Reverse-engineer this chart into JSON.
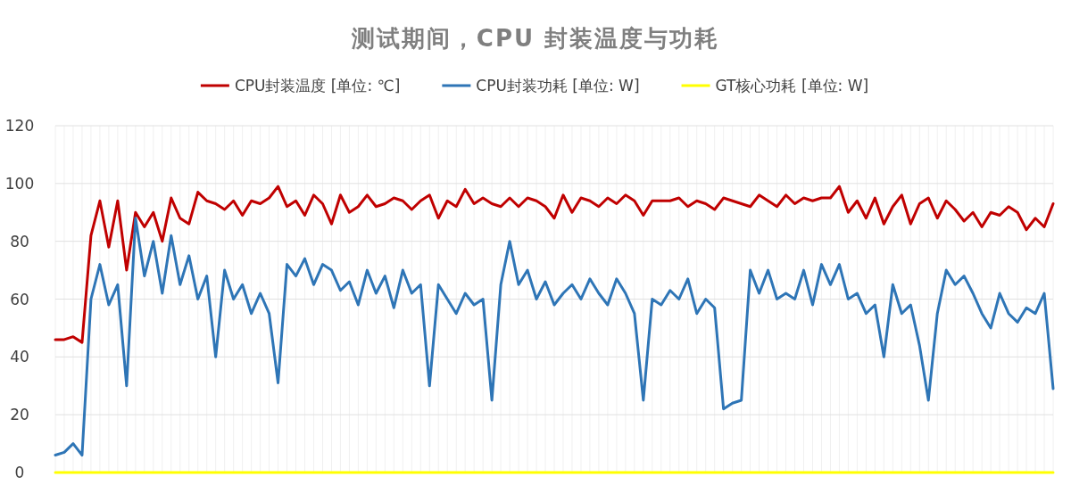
{
  "chart_data": {
    "type": "line",
    "title": "测试期间，CPU 封装温度与功耗",
    "categories": [
      null,
      null,
      null,
      null,
      null,
      null,
      null,
      null,
      null,
      null,
      null,
      null,
      null,
      null,
      null,
      null,
      null,
      null,
      null,
      null,
      null,
      null,
      null,
      null,
      null,
      null,
      null,
      null,
      null,
      null,
      null,
      null,
      null,
      null,
      null,
      null,
      null,
      null,
      null,
      null,
      null,
      null,
      null,
      null,
      null,
      null,
      null,
      null,
      null,
      null,
      null,
      null,
      null,
      null,
      null,
      null,
      null,
      null,
      null,
      null,
      null,
      null,
      null,
      null,
      null,
      null,
      null,
      null,
      null,
      null,
      null,
      null,
      null,
      null,
      null,
      null,
      null,
      null,
      null,
      null,
      null,
      null,
      null,
      null,
      null,
      null,
      null,
      null,
      null,
      null,
      null,
      null,
      null,
      null,
      null,
      null,
      null,
      null,
      null,
      null,
      null,
      null,
      null,
      null,
      null,
      null,
      null,
      null,
      null,
      null,
      null,
      null,
      null
    ],
    "series": [
      {
        "name": "CPU封装温度 [单位: ℃]",
        "color": "#c00000",
        "values": [
          46,
          46,
          47,
          45,
          82,
          94,
          78,
          94,
          70,
          90,
          85,
          90,
          80,
          95,
          88,
          86,
          97,
          94,
          93,
          91,
          94,
          89,
          94,
          93,
          95,
          99,
          92,
          94,
          89,
          96,
          93,
          86,
          96,
          90,
          92,
          96,
          92,
          93,
          95,
          94,
          91,
          94,
          96,
          88,
          94,
          92,
          98,
          93,
          95,
          93,
          92,
          95,
          92,
          95,
          94,
          92,
          88,
          96,
          90,
          95,
          94,
          92,
          95,
          93,
          96,
          94,
          89,
          94,
          94,
          94,
          95,
          92,
          94,
          93,
          91,
          95,
          94,
          93,
          92,
          96,
          94,
          92,
          96,
          93,
          95,
          94,
          95,
          95,
          99,
          90,
          94,
          88,
          95,
          86,
          92,
          96,
          86,
          93,
          95,
          88,
          94,
          91,
          87,
          90,
          85,
          90,
          89,
          92,
          90,
          84,
          88,
          85,
          93
        ]
      },
      {
        "name": "CPU封装功耗 [单位: W]",
        "color": "#2e75b6",
        "values": [
          6,
          7,
          10,
          6,
          60,
          72,
          58,
          65,
          30,
          88,
          68,
          80,
          62,
          82,
          65,
          75,
          60,
          68,
          40,
          70,
          60,
          65,
          55,
          62,
          55,
          31,
          72,
          68,
          74,
          65,
          72,
          70,
          63,
          66,
          58,
          70,
          62,
          68,
          57,
          70,
          62,
          65,
          30,
          65,
          60,
          55,
          62,
          58,
          60,
          25,
          65,
          80,
          65,
          70,
          60,
          66,
          58,
          62,
          65,
          60,
          67,
          62,
          58,
          67,
          62,
          55,
          25,
          60,
          58,
          63,
          60,
          67,
          55,
          60,
          57,
          22,
          24,
          25,
          70,
          62,
          70,
          60,
          62,
          60,
          70,
          58,
          72,
          65,
          72,
          60,
          62,
          55,
          58,
          40,
          65,
          55,
          58,
          44,
          25,
          55,
          70,
          65,
          68,
          62,
          55,
          50,
          62,
          55,
          52,
          57,
          55,
          62,
          29
        ]
      },
      {
        "name": "GT核心功耗 [单位: W]",
        "color": "#ffff00",
        "values": [
          0,
          0,
          0,
          0,
          0,
          0,
          0,
          0,
          0,
          0,
          0,
          0,
          0,
          0,
          0,
          0,
          0,
          0,
          0,
          0,
          0,
          0,
          0,
          0,
          0,
          0,
          0,
          0,
          0,
          0,
          0,
          0,
          0,
          0,
          0,
          0,
          0,
          0,
          0,
          0,
          0,
          0,
          0,
          0,
          0,
          0,
          0,
          0,
          0,
          0,
          0,
          0,
          0,
          0,
          0,
          0,
          0,
          0,
          0,
          0,
          0,
          0,
          0,
          0,
          0,
          0,
          0,
          0,
          0,
          0,
          0,
          0,
          0,
          0,
          0,
          0,
          0,
          0,
          0,
          0,
          0,
          0,
          0,
          0,
          0,
          0,
          0,
          0,
          0,
          0,
          0,
          0,
          0,
          0,
          0,
          0,
          0,
          0,
          0,
          0,
          0,
          0,
          0,
          0,
          0,
          0,
          0,
          0,
          0,
          0,
          0,
          0,
          0
        ]
      }
    ],
    "ylim": [
      0,
      120
    ],
    "yticks": [
      0,
      20,
      40,
      60,
      80,
      100,
      120
    ],
    "grid": true,
    "legend": "top",
    "line_style": "solid"
  }
}
